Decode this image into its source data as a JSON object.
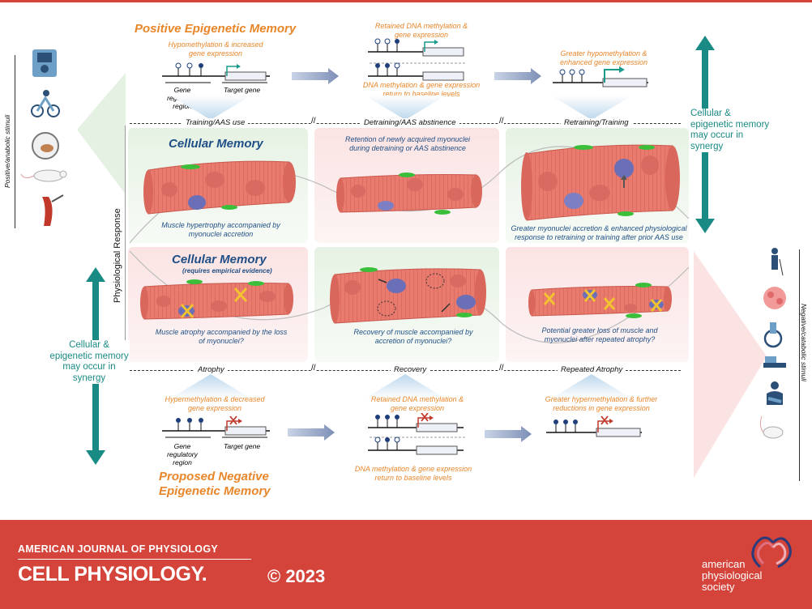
{
  "top_section": {
    "title": "Positive Epigenetic Memory",
    "panel1_note": "Hypomethylation & increased gene expression",
    "gene_regulatory_region": "Gene regulatory region",
    "target_gene": "Target gene",
    "panel2_note_top": "Retained DNA methylation & gene expression",
    "panel2_note_bottom": "DNA methylation & gene expression return to baseline levels",
    "panel3_note": "Greater hypomethylation & enhanced gene expression"
  },
  "phases_top": [
    "Training/AAS use",
    "Detraining/AAS abstinence",
    "Retraining/Training"
  ],
  "cellular_memory_top": {
    "title": "Cellular Memory",
    "cap1": "Muscle hypertrophy accompanied by myonuclei accretion",
    "cap2": "Retention of newly acquired myonuclei during detraining or AAS abstinence",
    "cap3": "Greater myonuclei accretion & enhanced physiological response to retraining or training after prior AAS use"
  },
  "cellular_memory_bottom": {
    "title": "Cellular Memory",
    "subtitle": "(requires empirical evidence)",
    "cap1": "Muscle atrophy accompanied by the loss of myonuclei?",
    "cap2": "Recovery of muscle accompanied by accretion of myonuclei?",
    "cap3": "Potential greater loss of muscle and myonuclei after repeated atrophy?"
  },
  "phases_bottom": [
    "Atrophy",
    "Recovery",
    "Repeated Atrophy"
  ],
  "bottom_section": {
    "title_line1": "Proposed Negative",
    "title_line2": "Epigenetic Memory",
    "panel1_note": "Hypermethylation & decreased gene expression",
    "gene_regulatory_region": "Gene regulatory region",
    "target_gene": "Target gene",
    "panel2_note_top": "Retained DNA methylation & gene expression",
    "panel2_note_bottom": "DNA methylation & gene expression return to baseline levels",
    "panel3_note": "Greater hypermethylation & further reductions in gene expression"
  },
  "side_labels": {
    "left": "Positive/anabolic stimuli",
    "right": "Negative/catabolic stimuli",
    "y_axis": "Physiological Response",
    "synergy_right": "Cellular & epigenetic memory may occur in synergy",
    "synergy_left": "Cellular & epigenetic memory may occur in synergy",
    "break_mark": "//"
  },
  "footer": {
    "journal_line1": "AMERICAN JOURNAL OF PHYSIOLOGY",
    "journal_line2": "CELL PHYSIOLOGY.",
    "copyright": "© 2023",
    "society_line1": "american",
    "society_line2": "physiological",
    "society_line3": "society"
  },
  "icons": [
    "weight-machine-icon",
    "cyclist-icon",
    "hamster-wheel-icon",
    "rat-icon",
    "muscle-syringe-icon",
    "elderly-person-icon",
    "cancer-cell-icon",
    "wheelchair-icon",
    "hospital-bed-icon",
    "arm-sling-icon",
    "mouse-icon",
    "aps-logo-icon"
  ],
  "colors": {
    "accent_red": "#d4443b",
    "orange": "#e8862a",
    "teal": "#1a8a84",
    "navy": "#1f4f86",
    "muscle": "#e87a6e",
    "nucleus": "#6b6fb8",
    "satellite": "#3bbf3b",
    "cross": "#f2c230"
  }
}
